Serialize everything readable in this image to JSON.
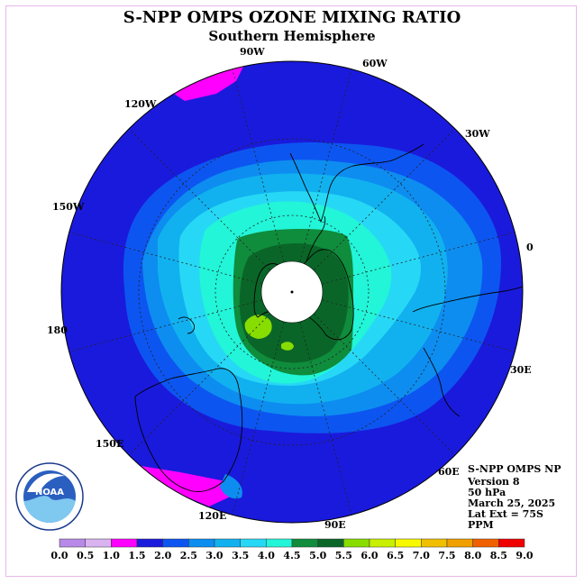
{
  "title": "S-NPP OMPS OZONE MIXING RATIO",
  "subtitle": "Southern Hemisphere",
  "map": {
    "projection": "polar stereographic, south pole centered",
    "latitude_extent": "75S",
    "longitude_labels": [
      "90W",
      "60W",
      "30W",
      "0",
      "30E",
      "60E",
      "90E",
      "120E",
      "150E",
      "180",
      "150W",
      "120W"
    ]
  },
  "info": {
    "instrument": "S-NPP OMPS NP",
    "version": "Version 8",
    "level": "50 hPa",
    "date": "March 25, 2025",
    "lat_ext": "Lat Ext = 75S",
    "units": "PPM"
  },
  "logo": {
    "name": "NOAA",
    "text": "NOAA"
  },
  "chart_data": {
    "type": "heatmap",
    "title": "S-NPP OMPS OZONE MIXING RATIO",
    "subtitle": "Southern Hemisphere",
    "units": "PPM",
    "pressure_level": "50 hPa",
    "date": "March 25, 2025",
    "colorbar": {
      "min": 0.0,
      "max": 9.0,
      "step": 0.5,
      "tick_labels": [
        "0.0",
        "0.5",
        "1.0",
        "1.5",
        "2.0",
        "2.5",
        "3.0",
        "3.5",
        "4.0",
        "4.5",
        "5.0",
        "5.5",
        "6.0",
        "6.5",
        "7.0",
        "7.5",
        "8.0",
        "8.5",
        "9.0"
      ],
      "colors": [
        "#b889e8",
        "#d9b3f0",
        "#ff00ff",
        "#1a1adc",
        "#0d55f0",
        "#0d8df0",
        "#11b1f0",
        "#26d8f5",
        "#22f5d8",
        "#0f8c3c",
        "#0a6628",
        "#88dd00",
        "#c8f000",
        "#f8f800",
        "#f0c000",
        "#f0a000",
        "#f06000",
        "#f00000",
        "#8c5030"
      ]
    },
    "observed_range": {
      "min": 1.0,
      "max": 6.0
    },
    "missing_data_region": "South Pole (white disc)"
  }
}
